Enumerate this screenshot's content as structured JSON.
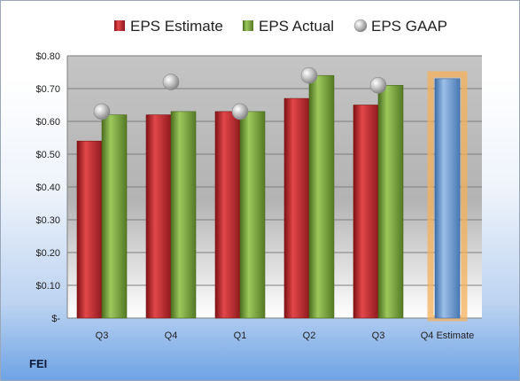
{
  "company": "FEI",
  "chart_data": {
    "type": "bar",
    "categories": [
      "Q3",
      "Q4",
      "Q1",
      "Q2",
      "Q3",
      "Q4 Estimate"
    ],
    "series": [
      {
        "name": "EPS Estimate",
        "values": [
          0.54,
          0.62,
          0.63,
          0.67,
          0.65,
          null
        ],
        "color": "#c0282d"
      },
      {
        "name": "EPS Actual",
        "values": [
          0.62,
          0.63,
          0.63,
          0.74,
          0.71,
          null
        ],
        "color": "#77a33b"
      },
      {
        "name": "EPS GAAP",
        "type": "scatter",
        "values": [
          0.63,
          0.72,
          0.63,
          0.74,
          0.71,
          null
        ],
        "color": "#a6a6a6"
      }
    ],
    "forecast": {
      "category": "Q4 Estimate",
      "value": 0.73,
      "color": "#6a98d0",
      "highlight": "#f6b05a"
    },
    "ylim": [
      0,
      0.8
    ],
    "yticks": [
      0,
      0.1,
      0.2,
      0.3,
      0.4,
      0.5,
      0.6,
      0.7,
      0.8
    ],
    "ytick_labels": [
      "$-",
      "$0.10",
      "$0.20",
      "$0.30",
      "$0.40",
      "$0.50",
      "$0.60",
      "$0.70",
      "$0.80"
    ],
    "legend_position": "top",
    "grid": true
  }
}
